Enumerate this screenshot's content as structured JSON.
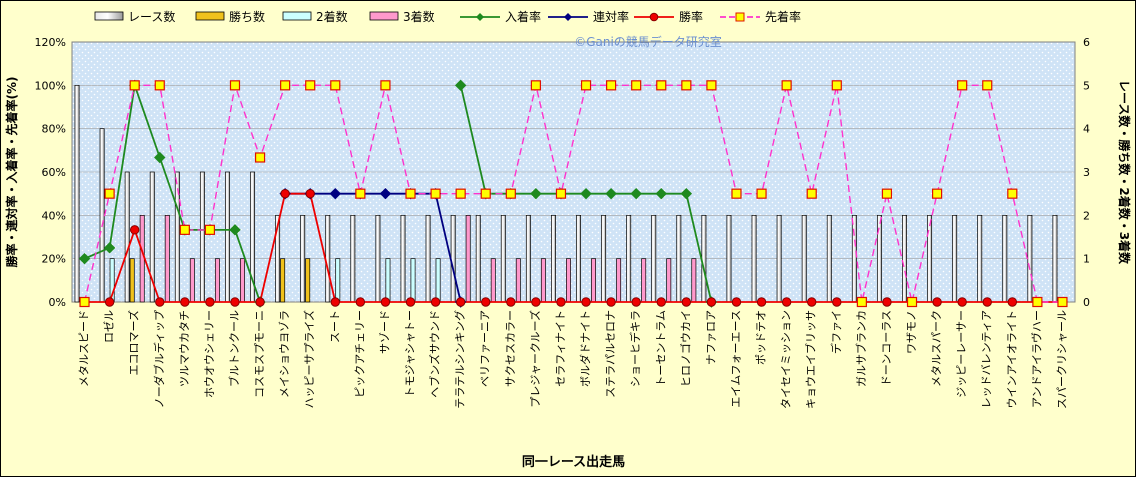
{
  "chart_data": {
    "type": "bar",
    "watermark": "©Ganiの競馬データ研究室",
    "xlabel": "同一レース出走馬",
    "ylabel_left": "勝率・連対率・入着率・先着率(%)",
    "ylabel_right": "レース数・勝ち数・2着数・3着数",
    "ylim_left": [
      0,
      120
    ],
    "ylim_right": [
      0,
      6
    ],
    "yticks_left": [
      "0%",
      "20%",
      "40%",
      "60%",
      "80%",
      "100%",
      "120%"
    ],
    "yticks_right": [
      "0",
      "1",
      "2",
      "3",
      "4",
      "5",
      "6"
    ],
    "legend_position": "top",
    "categories": [
      "メタルスピード",
      "ロゼル",
      "エコロマーズ",
      "ノーダブルディップ",
      "ツルマウカタチ",
      "ホウオウシェリー",
      "ブルトンクール",
      "コスモスプモーニ",
      "メイショウヨゾラ",
      "ハッピーサプライズ",
      "スート",
      "ピックアチェリー",
      "サゾード",
      "トモジャシャトー",
      "ヘブンズサウンド",
      "テラテルシンキング",
      "ベリファーニア",
      "サクセスカラー",
      "プレジャークルーズ",
      "セラフィナイト",
      "ボルダドナイト",
      "ステラパルセロナ",
      "ショーヒデキラ",
      "トーセントラム",
      "ヒロノゴウカイ",
      "ナファロア",
      "エイムフォーエース",
      "ポッドテオ",
      "タイセイミッション",
      "キョウエイブリッサ",
      "デファイ",
      "ガルサブランカ",
      "ドーンコーラス",
      "ワザモノ",
      "メタルスパーク",
      "ジッピーレーサー",
      "レッドバレンティア",
      "ウインアイオライト",
      "アンドアイラヴハー",
      "スパークリシャール"
    ],
    "bar_series": [
      {
        "name": "レース数",
        "color": "#ffffff",
        "values": [
          5,
          4,
          3,
          3,
          3,
          3,
          3,
          3,
          2,
          2,
          2,
          2,
          2,
          2,
          2,
          2,
          2,
          2,
          2,
          2,
          2,
          2,
          2,
          2,
          2,
          2,
          2,
          2,
          2,
          2,
          2,
          2,
          2,
          2,
          2,
          2,
          2,
          2,
          2,
          2
        ]
      },
      {
        "name": "勝ち数",
        "color": "#f0c21c",
        "values": [
          0,
          0,
          1,
          0,
          0,
          0,
          0,
          0,
          1,
          1,
          0,
          0,
          0,
          0,
          0,
          0,
          0,
          0,
          0,
          0,
          0,
          0,
          0,
          0,
          0,
          0,
          0,
          0,
          0,
          0,
          0,
          0,
          0,
          0,
          0,
          0,
          0,
          0,
          0,
          0
        ]
      },
      {
        "name": "2着数",
        "color": "#ccffff",
        "values": [
          0,
          1,
          0,
          0,
          0,
          0,
          0,
          0,
          0,
          0,
          1,
          0,
          1,
          1,
          1,
          0,
          0,
          0,
          0,
          0,
          0,
          0,
          0,
          0,
          0,
          0,
          0,
          0,
          0,
          0,
          0,
          0,
          0,
          0,
          0,
          0,
          0,
          0,
          0,
          0
        ]
      },
      {
        "name": "3着数",
        "color": "#ff99cc",
        "values": [
          0,
          0,
          2,
          2,
          1,
          1,
          1,
          0,
          0,
          0,
          0,
          0,
          0,
          0,
          0,
          2,
          1,
          1,
          1,
          1,
          1,
          1,
          1,
          1,
          1,
          0,
          0,
          0,
          0,
          0,
          0,
          0,
          0,
          0,
          0,
          0,
          0,
          0,
          0,
          0
        ]
      }
    ],
    "line_series": [
      {
        "name": "入着率",
        "color": "#1f8a1f",
        "marker": "diamond",
        "values": [
          20,
          25,
          100,
          66.7,
          33.3,
          33.3,
          33.3,
          0,
          null,
          null,
          null,
          null,
          null,
          null,
          null,
          100,
          50,
          50,
          50,
          50,
          50,
          50,
          50,
          50,
          50,
          0,
          null,
          null,
          null,
          null,
          null,
          null,
          null,
          null,
          null,
          null,
          null,
          null,
          null,
          null
        ]
      },
      {
        "name": "連対率",
        "color": "#000080",
        "marker": "diamond",
        "values": [
          null,
          null,
          null,
          null,
          null,
          null,
          null,
          null,
          50,
          50,
          50,
          50,
          50,
          50,
          50,
          0,
          null,
          null,
          null,
          null,
          null,
          null,
          null,
          null,
          null,
          null,
          null,
          null,
          null,
          null,
          null,
          null,
          null,
          null,
          null,
          null,
          null,
          null,
          null,
          null
        ]
      },
      {
        "name": "勝率",
        "color": "#ee0000",
        "marker": "circle",
        "values": [
          0,
          0,
          33.3,
          0,
          0,
          0,
          0,
          0,
          50,
          50,
          0,
          0,
          0,
          0,
          0,
          0,
          0,
          0,
          0,
          0,
          0,
          0,
          0,
          0,
          0,
          0,
          0,
          0,
          0,
          0,
          0,
          0,
          0,
          0,
          0,
          0,
          0,
          0,
          0,
          0
        ]
      },
      {
        "name": "先着率",
        "color": "#ff33cc",
        "marker": "square",
        "dashed": true,
        "values": [
          0,
          50,
          100,
          100,
          33.3,
          33.3,
          100,
          66.7,
          100,
          100,
          100,
          50,
          100,
          50,
          50,
          50,
          50,
          50,
          100,
          50,
          100,
          100,
          100,
          100,
          100,
          100,
          50,
          50,
          100,
          50,
          100,
          0,
          50,
          0,
          50,
          100,
          100,
          50,
          0,
          0
        ]
      }
    ]
  }
}
